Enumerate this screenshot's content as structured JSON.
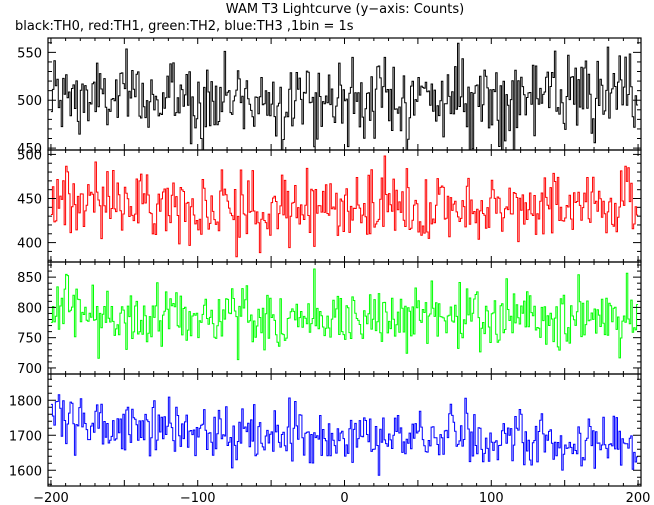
{
  "title": "WAM T3 Lightcurve (y−axis: Counts)",
  "subtitle": "black:TH0, red:TH1, green:TH2, blue:TH3 ,1bin = 1s",
  "chart_data": {
    "type": "line",
    "title": "WAM T3 Lightcurve (y−axis: Counts)",
    "subtitle": "black:TH0, red:TH1, green:TH2, blue:TH3 ,1bin = 1s",
    "ylabel": "Counts",
    "xlim": [
      -202,
      202
    ],
    "x_ticks": [
      -200,
      -100,
      0,
      100,
      200
    ],
    "x_tick_labels": [
      "−200",
      "−100",
      "0",
      "100",
      "200"
    ],
    "bin_size_s": 1,
    "panels": [
      {
        "name": "TH0",
        "color": "#000000",
        "ylim": [
          448,
          565
        ],
        "y_ticks": [
          450,
          500,
          550
        ],
        "y_tick_labels": [
          "450",
          "500",
          "550"
        ],
        "mean": 502,
        "noise_sd": 21,
        "trend": [
          [
            -200,
            0
          ],
          [
            200,
            0
          ]
        ]
      },
      {
        "name": "TH1",
        "color": "#ff0000",
        "ylim": [
          378,
          505
        ],
        "y_ticks": [
          400,
          450,
          500
        ],
        "y_tick_labels": [
          "400",
          "450",
          "500"
        ],
        "mean": 442,
        "noise_sd": 19,
        "trend": [
          [
            -200,
            8
          ],
          [
            -150,
            4
          ],
          [
            -60,
            -4
          ],
          [
            0,
            -2
          ],
          [
            60,
            -6
          ],
          [
            150,
            0
          ],
          [
            200,
            6
          ]
        ]
      },
      {
        "name": "TH2",
        "color": "#00ff00",
        "ylim": [
          690,
          875
        ],
        "y_ticks": [
          700,
          750,
          800,
          850
        ],
        "y_tick_labels": [
          "700",
          "750",
          "800",
          "850"
        ],
        "mean": 784,
        "noise_sd": 27,
        "trend": [
          [
            -200,
            6
          ],
          [
            -150,
            4
          ],
          [
            0,
            -2
          ],
          [
            100,
            0
          ],
          [
            200,
            -4
          ]
        ]
      },
      {
        "name": "TH3",
        "color": "#0000ff",
        "ylim": [
          1555,
          1875
        ],
        "y_ticks": [
          1600,
          1700,
          1800
        ],
        "y_tick_labels": [
          "1600",
          "1700",
          "1800"
        ],
        "mean": 1695,
        "noise_sd": 40,
        "trend": [
          [
            -200,
            85
          ],
          [
            -190,
            65
          ],
          [
            -170,
            35
          ],
          [
            -150,
            25
          ],
          [
            -100,
            12
          ],
          [
            -50,
            5
          ],
          [
            0,
            0
          ],
          [
            100,
            -8
          ],
          [
            200,
            -18
          ]
        ]
      }
    ]
  }
}
